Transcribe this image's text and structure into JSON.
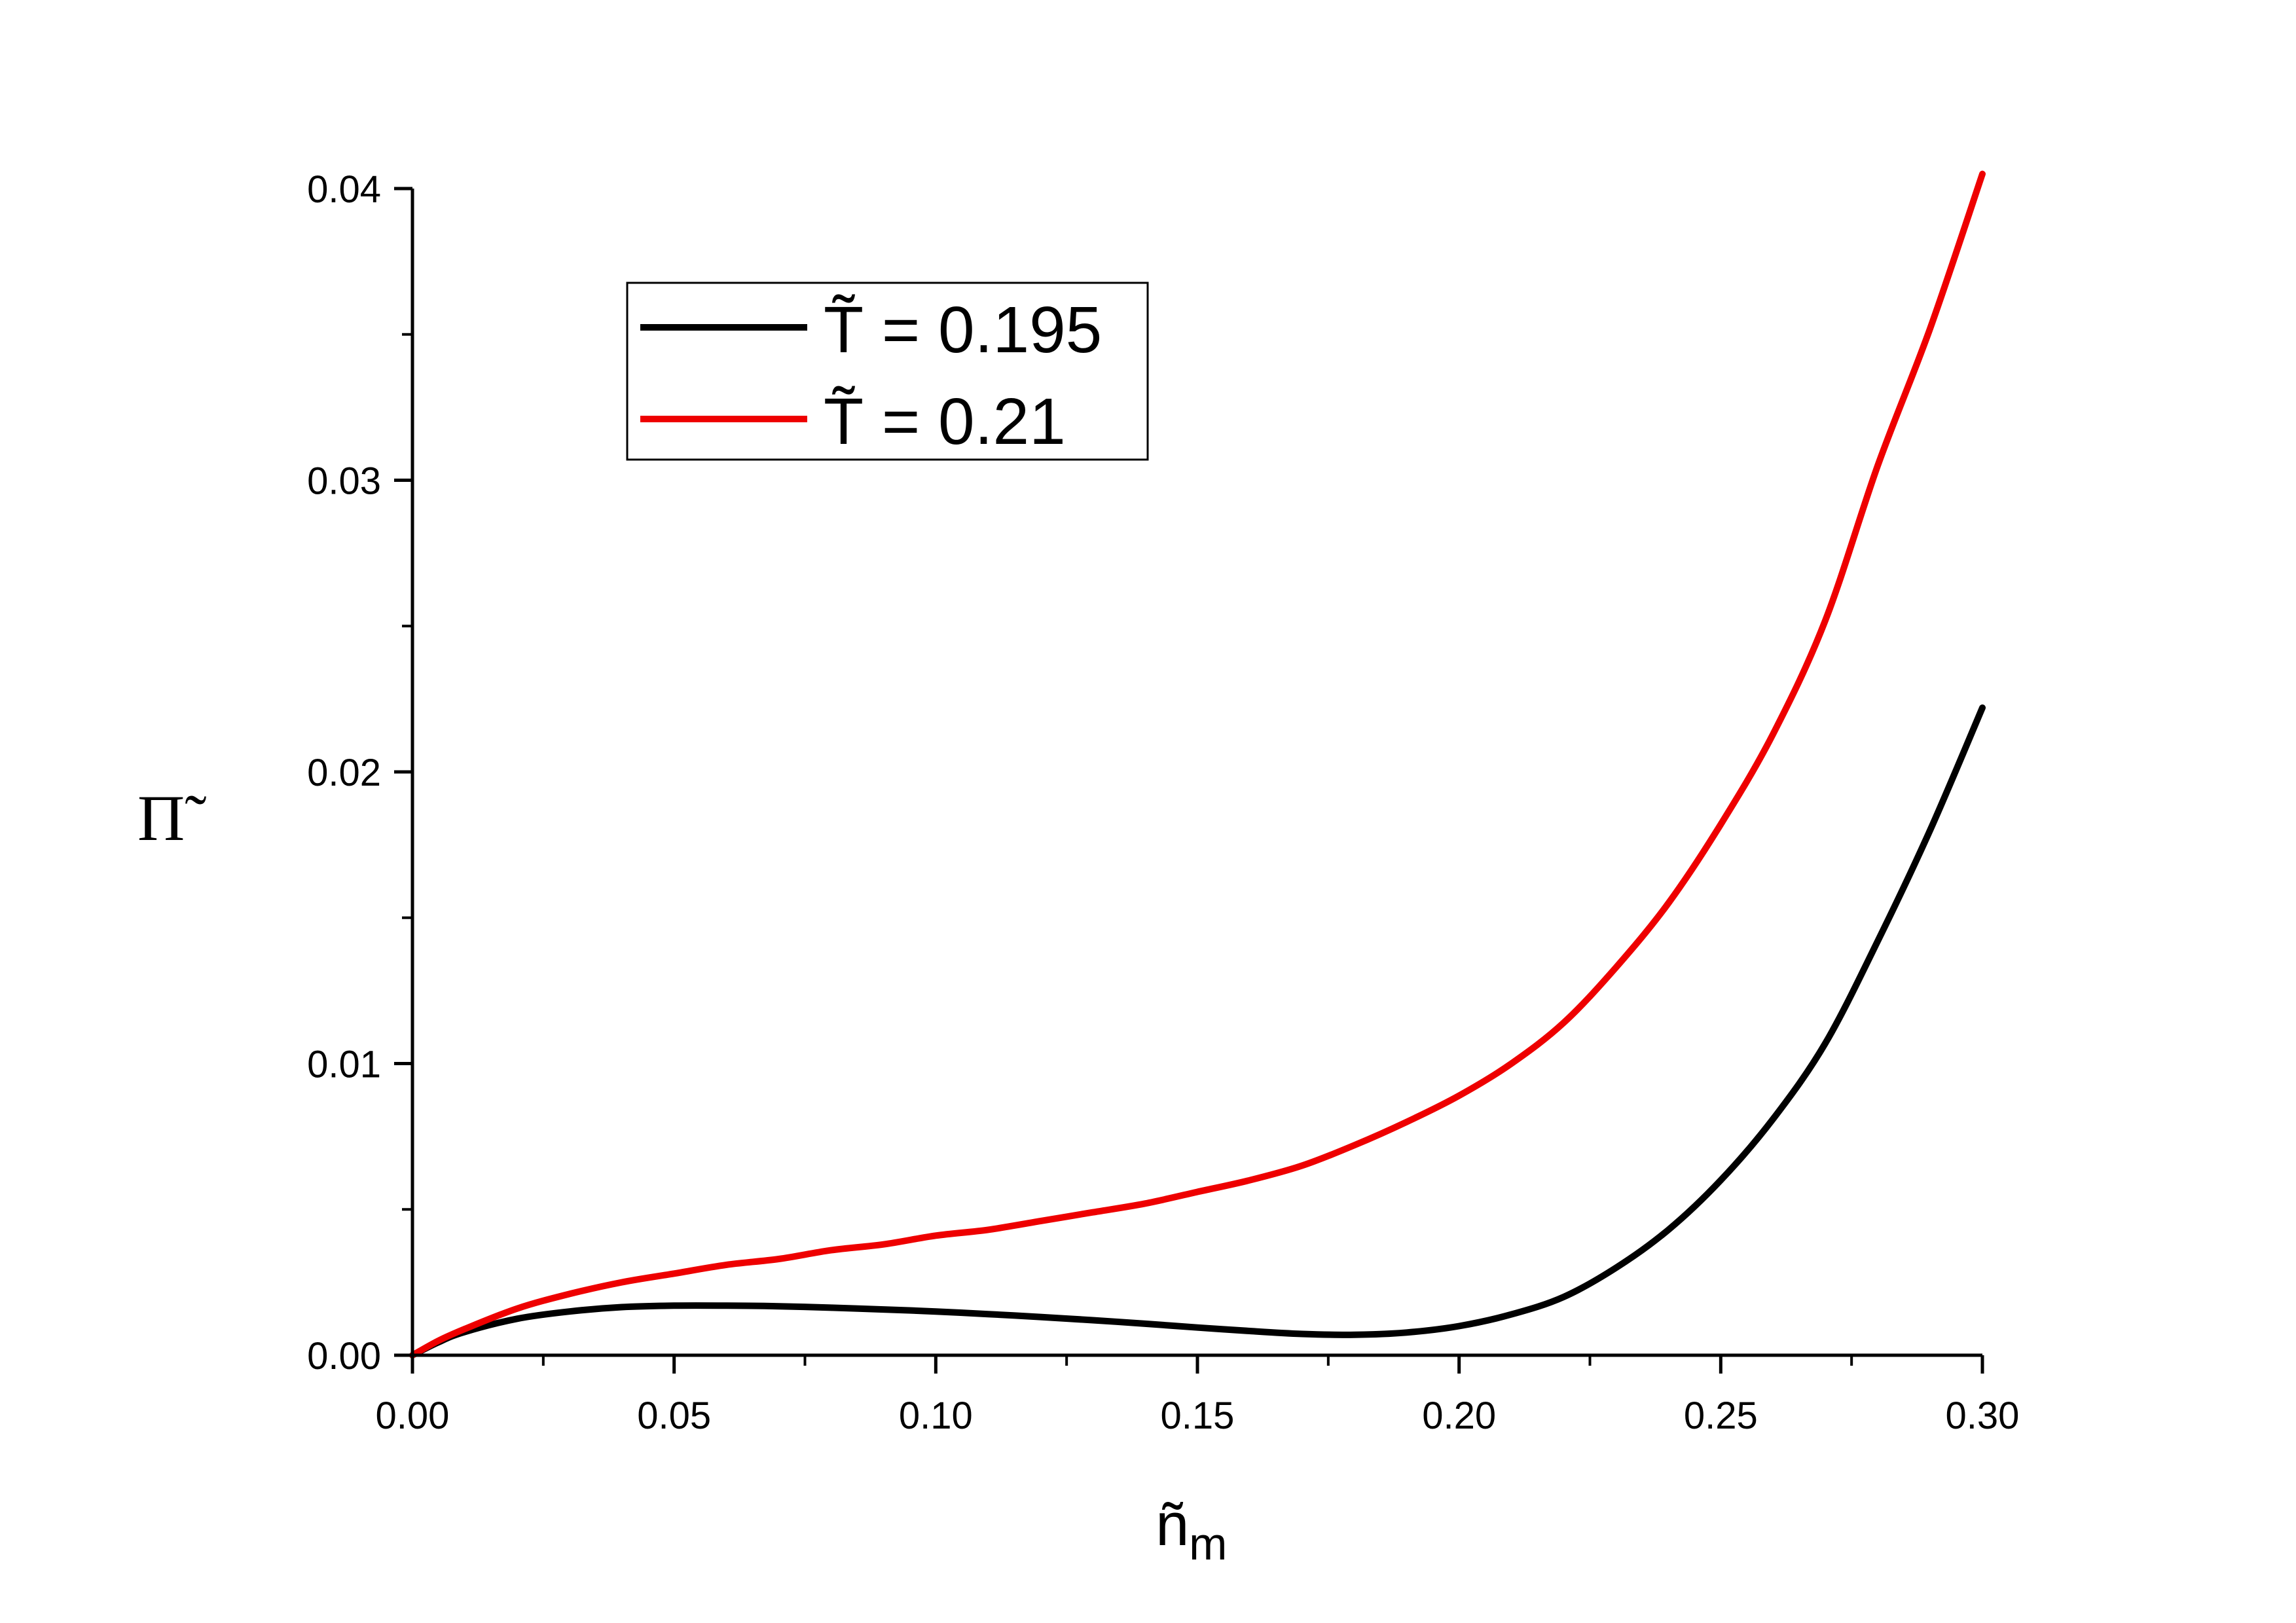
{
  "chart_data": {
    "type": "line",
    "xlabel": "ñ",
    "xlabel_sub": "m",
    "ylabel": "Π̃",
    "xlim": [
      0,
      0.3
    ],
    "ylim": [
      0,
      0.04
    ],
    "x_ticks": [
      "0.00",
      "0.05",
      "0.10",
      "0.15",
      "0.20",
      "0.25",
      "0.30"
    ],
    "y_ticks": [
      "0.00",
      "0.01",
      "0.02",
      "0.03",
      "0.04"
    ],
    "grid": false,
    "legend_position": "top-left",
    "series": [
      {
        "name": "T̃ = 0.195",
        "color": "#000000",
        "x": [
          0,
          0.005,
          0.01,
          0.02,
          0.03,
          0.04,
          0.05,
          0.06,
          0.07,
          0.08,
          0.09,
          0.1,
          0.11,
          0.12,
          0.13,
          0.14,
          0.15,
          0.16,
          0.17,
          0.18,
          0.19,
          0.2,
          0.21,
          0.22,
          0.23,
          0.24,
          0.25,
          0.26,
          0.27,
          0.28,
          0.29,
          0.3
        ],
        "y": [
          0,
          0.00045,
          0.0008,
          0.00125,
          0.0015,
          0.00165,
          0.0017,
          0.0017,
          0.00168,
          0.00163,
          0.00157,
          0.0015,
          0.00141,
          0.00131,
          0.0012,
          0.00108,
          0.00095,
          0.00083,
          0.00073,
          0.0007,
          0.00078,
          0.001,
          0.0014,
          0.002,
          0.003,
          0.0043,
          0.006,
          0.0081,
          0.0107,
          0.0142,
          0.018,
          0.0222
        ]
      },
      {
        "name": "T̃ = 0.21",
        "color": "#ee0000",
        "x": [
          0,
          0.005,
          0.01,
          0.02,
          0.03,
          0.04,
          0.05,
          0.06,
          0.07,
          0.08,
          0.09,
          0.1,
          0.11,
          0.12,
          0.13,
          0.14,
          0.15,
          0.16,
          0.17,
          0.18,
          0.19,
          0.2,
          0.21,
          0.22,
          0.23,
          0.24,
          0.25,
          0.26,
          0.27,
          0.28,
          0.29,
          0.3
        ],
        "y": [
          0,
          0.0005,
          0.0009,
          0.0016,
          0.0021,
          0.0025,
          0.0028,
          0.0031,
          0.0033,
          0.0036,
          0.0038,
          0.0041,
          0.0043,
          0.0046,
          0.0049,
          0.0052,
          0.0056,
          0.006,
          0.0065,
          0.0072,
          0.008,
          0.0089,
          0.01,
          0.0114,
          0.0133,
          0.0155,
          0.0182,
          0.0213,
          0.0252,
          0.0305,
          0.0352,
          0.0405
        ]
      }
    ]
  }
}
